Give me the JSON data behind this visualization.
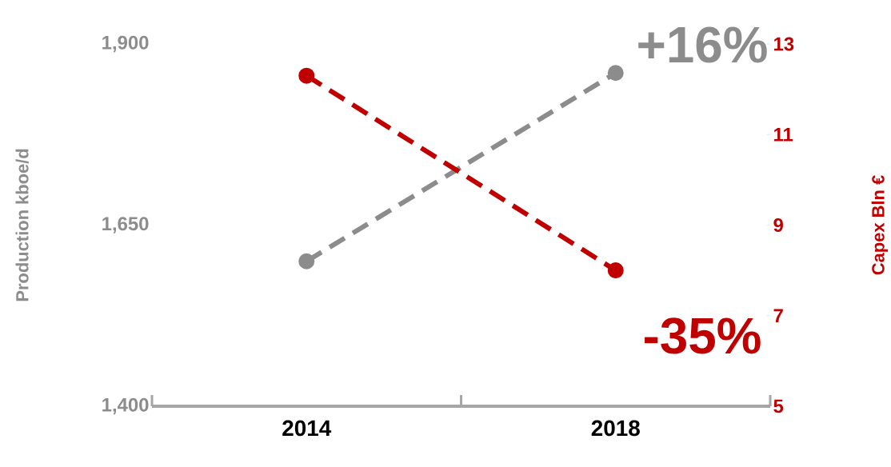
{
  "chart_data": {
    "type": "line",
    "categories": [
      "2014",
      "2018"
    ],
    "ylabel": "Production kboe/d",
    "y2label": "Capex Bln €",
    "ylim": [
      1400,
      1900
    ],
    "yticks": [
      {
        "value": 1400,
        "label": "1,400"
      },
      {
        "value": 1650,
        "label": "1,650"
      },
      {
        "value": 1900,
        "label": "1,900"
      }
    ],
    "y2lim": [
      5,
      13
    ],
    "y2ticks": [
      5,
      7,
      9,
      11,
      13
    ],
    "series": [
      {
        "color": "#8c8c8c",
        "values": [
          1600,
          1860
        ]
      },
      {
        "color": "#c00000",
        "values": [
          12.3,
          8.0
        ],
        "axis": "y2"
      }
    ],
    "annotations": [
      "+16%",
      "-35%"
    ],
    "marker": "circle",
    "line_style": "dashed",
    "grid": false
  }
}
